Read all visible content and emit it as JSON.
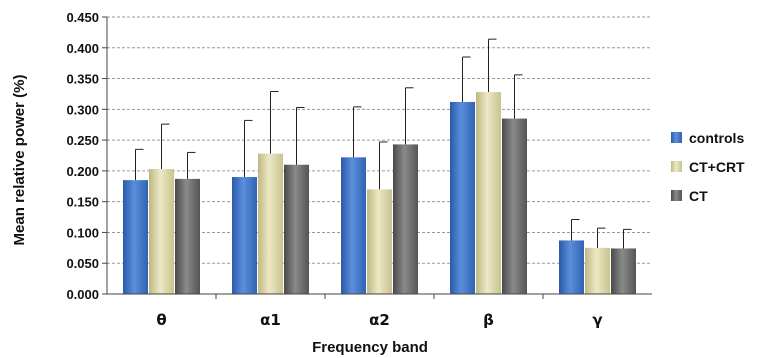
{
  "chart_data": {
    "type": "bar",
    "xlabel": "Frequency band",
    "ylabel": "Mean relative power (%)",
    "categories": [
      "θ",
      "α1",
      "α2",
      "β",
      "γ"
    ],
    "ylim": [
      0,
      0.45
    ],
    "yticks": [
      "0.000",
      "0.050",
      "0.100",
      "0.150",
      "0.200",
      "0.250",
      "0.300",
      "0.350",
      "0.400",
      "0.450"
    ],
    "grid": true,
    "error_bars": true,
    "legend_position": "right",
    "series": [
      {
        "name": "controls",
        "color": "#3b6fc2",
        "values": [
          0.185,
          0.19,
          0.222,
          0.312,
          0.087
        ],
        "errors": [
          0.05,
          0.092,
          0.082,
          0.073,
          0.034
        ]
      },
      {
        "name": "CT+CRT",
        "color": "#d8d3a3",
        "values": [
          0.203,
          0.228,
          0.17,
          0.328,
          0.075
        ],
        "errors": [
          0.073,
          0.101,
          0.077,
          0.086,
          0.032
        ]
      },
      {
        "name": "CT",
        "color": "#6a6a6a",
        "values": [
          0.187,
          0.21,
          0.243,
          0.285,
          0.074
        ],
        "errors": [
          0.043,
          0.093,
          0.092,
          0.071,
          0.031
        ]
      }
    ]
  }
}
